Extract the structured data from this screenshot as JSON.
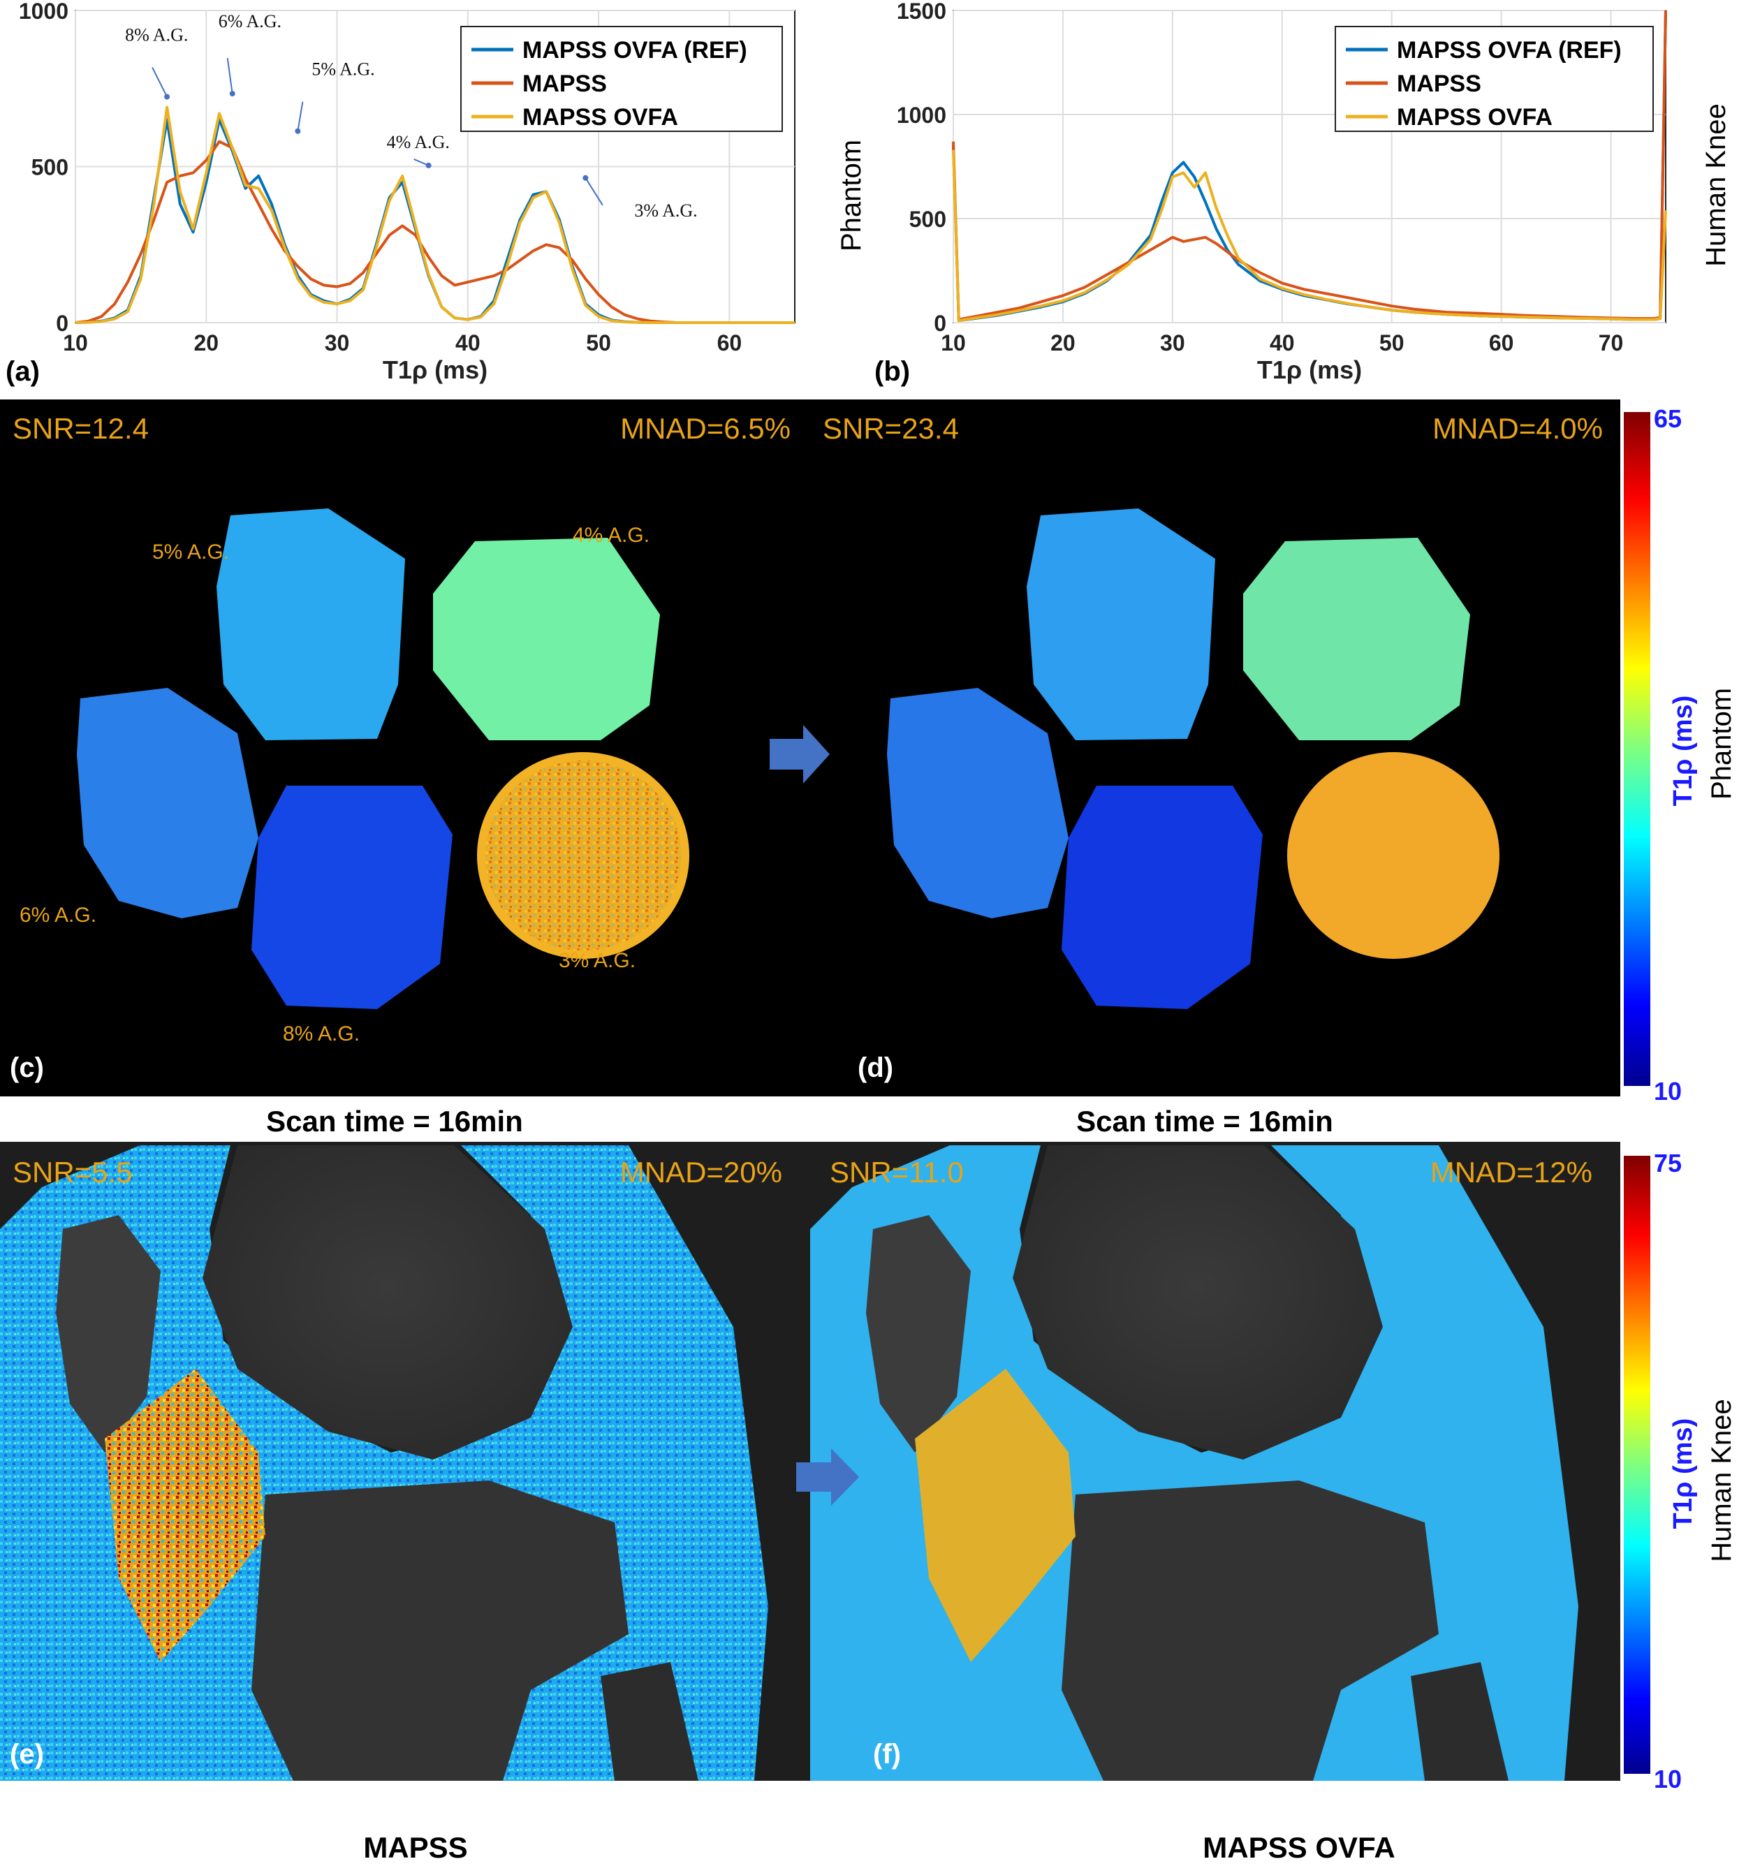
{
  "figure": {
    "panel_labels": [
      "(a)",
      "(b)",
      "(c)",
      "(d)",
      "(e)",
      "(f)"
    ],
    "side_label_human_knee_top": "Human Knee",
    "side_label_phantom_top": "Phantom",
    "scan_time_c": "Scan time = 16min",
    "scan_time_d": "Scan time = 16min",
    "caption_e": "MAPSS",
    "caption_f": "MAPSS OVFA",
    "colorbar_phantom": {
      "max": "65",
      "min": "10",
      "title": "T1ρ (ms)",
      "side": "Phantom"
    },
    "colorbar_knee": {
      "max": "75",
      "min": "10",
      "title": "T1ρ (ms)",
      "side": "Human Knee"
    },
    "map_c": {
      "snr": "SNR=12.4",
      "mnad": "MNAD=6.5%"
    },
    "map_d": {
      "snr": "SNR=23.4",
      "mnad": "MNAD=4.0%"
    },
    "map_e": {
      "snr": "SNR=5.5",
      "mnad": "MNAD=20%"
    },
    "map_f": {
      "snr": "SNR=11.0",
      "mnad": "MNAD=12%"
    },
    "phantom_labels": [
      "5% A.G.",
      "4% A.G.",
      "6% A.G.",
      "3% A.G.",
      "8% A.G."
    ],
    "colors": {
      "ref": "#0072BD",
      "mapss": "#D95319",
      "ovfa": "#EDB120",
      "annot": "#E8A317",
      "colorbar_text": "#1a1aff",
      "arrow": "#4472C4"
    }
  },
  "chart_data": [
    {
      "type": "line",
      "panel": "(a)",
      "xlabel": "T1ρ (ms)",
      "ylabel": "",
      "xlim": [
        10,
        65
      ],
      "ylim": [
        0,
        1000
      ],
      "xticks": [
        10,
        20,
        30,
        40,
        50,
        60
      ],
      "yticks": [
        0,
        500,
        1000
      ],
      "grid": true,
      "legend_position": "top-right",
      "annotations": [
        {
          "text": "8% A.G.",
          "x": 17,
          "y": 690
        },
        {
          "text": "6% A.G.",
          "x": 22,
          "y": 700
        },
        {
          "text": "5% A.G.",
          "x": 27,
          "y": 580
        },
        {
          "text": "4% A.G.",
          "x": 37,
          "y": 470
        },
        {
          "text": "3% A.G.",
          "x": 49,
          "y": 430
        }
      ],
      "x": [
        10,
        11,
        12,
        13,
        14,
        15,
        16,
        17,
        18,
        19,
        20,
        21,
        22,
        23,
        24,
        25,
        26,
        27,
        28,
        29,
        30,
        31,
        32,
        33,
        34,
        35,
        36,
        37,
        38,
        39,
        40,
        41,
        42,
        43,
        44,
        45,
        46,
        47,
        48,
        49,
        50,
        51,
        52,
        53,
        54,
        55,
        56,
        57,
        58,
        59,
        60,
        61,
        62,
        63,
        64,
        65
      ],
      "series": [
        {
          "name": "MAPSS OVFA (REF)",
          "values": [
            0,
            2,
            5,
            15,
            40,
            150,
            400,
            650,
            380,
            290,
            450,
            650,
            550,
            430,
            470,
            380,
            250,
            150,
            90,
            70,
            60,
            75,
            110,
            250,
            400,
            450,
            300,
            150,
            50,
            15,
            10,
            20,
            70,
            200,
            330,
            410,
            420,
            330,
            180,
            60,
            25,
            8,
            3,
            1,
            0,
            0,
            0,
            0,
            0,
            0,
            0,
            0,
            0,
            0,
            0,
            0
          ]
        },
        {
          "name": "MAPSS",
          "values": [
            0,
            5,
            20,
            60,
            130,
            220,
            330,
            450,
            470,
            480,
            520,
            580,
            560,
            460,
            380,
            300,
            230,
            180,
            140,
            120,
            115,
            125,
            160,
            220,
            280,
            310,
            280,
            210,
            150,
            120,
            130,
            140,
            150,
            170,
            200,
            230,
            250,
            240,
            200,
            140,
            90,
            50,
            25,
            12,
            5,
            2,
            0,
            0,
            0,
            0,
            0,
            0,
            0,
            0,
            0,
            0
          ]
        },
        {
          "name": "MAPSS OVFA",
          "values": [
            0,
            1,
            4,
            12,
            35,
            140,
            380,
            690,
            420,
            300,
            480,
            670,
            560,
            440,
            430,
            360,
            240,
            140,
            85,
            65,
            60,
            70,
            105,
            240,
            390,
            470,
            310,
            155,
            50,
            15,
            10,
            18,
            60,
            180,
            320,
            400,
            420,
            320,
            170,
            55,
            20,
            6,
            2,
            1,
            0,
            0,
            0,
            0,
            0,
            0,
            0,
            0,
            0,
            0,
            0,
            0
          ]
        }
      ]
    },
    {
      "type": "line",
      "panel": "(b)",
      "xlabel": "T1ρ (ms)",
      "ylabel": "",
      "xlim": [
        10,
        75
      ],
      "ylim": [
        0,
        1500
      ],
      "xticks": [
        10,
        20,
        30,
        40,
        50,
        60,
        70
      ],
      "yticks": [
        0,
        500,
        1000,
        1500
      ],
      "grid": true,
      "legend_position": "top-right",
      "x": [
        10,
        10.5,
        12,
        14,
        16,
        18,
        20,
        22,
        24,
        26,
        28,
        29,
        30,
        31,
        32,
        33,
        34,
        35,
        36,
        38,
        40,
        42,
        44,
        46,
        48,
        50,
        52,
        55,
        58,
        60,
        62,
        65,
        68,
        70,
        72,
        74,
        74.5,
        75
      ],
      "series": [
        {
          "name": "MAPSS OVFA (REF)",
          "values": [
            850,
            10,
            20,
            35,
            55,
            75,
            100,
            140,
            200,
            290,
            420,
            580,
            720,
            770,
            700,
            580,
            450,
            350,
            280,
            200,
            160,
            130,
            110,
            90,
            75,
            60,
            50,
            40,
            33,
            30,
            27,
            23,
            20,
            18,
            15,
            15,
            20,
            1500
          ]
        },
        {
          "name": "MAPSS",
          "values": [
            870,
            15,
            30,
            50,
            70,
            100,
            130,
            170,
            230,
            290,
            350,
            380,
            410,
            390,
            400,
            410,
            380,
            340,
            300,
            240,
            190,
            160,
            140,
            120,
            100,
            80,
            65,
            50,
            45,
            40,
            35,
            30,
            25,
            22,
            20,
            20,
            25,
            1500
          ]
        },
        {
          "name": "MAPSS OVFA",
          "values": [
            830,
            10,
            22,
            38,
            58,
            80,
            105,
            145,
            205,
            280,
            400,
            540,
            700,
            720,
            650,
            720,
            550,
            420,
            310,
            210,
            165,
            135,
            112,
            92,
            75,
            60,
            50,
            40,
            33,
            30,
            27,
            23,
            20,
            18,
            15,
            15,
            20,
            540
          ]
        }
      ]
    }
  ]
}
